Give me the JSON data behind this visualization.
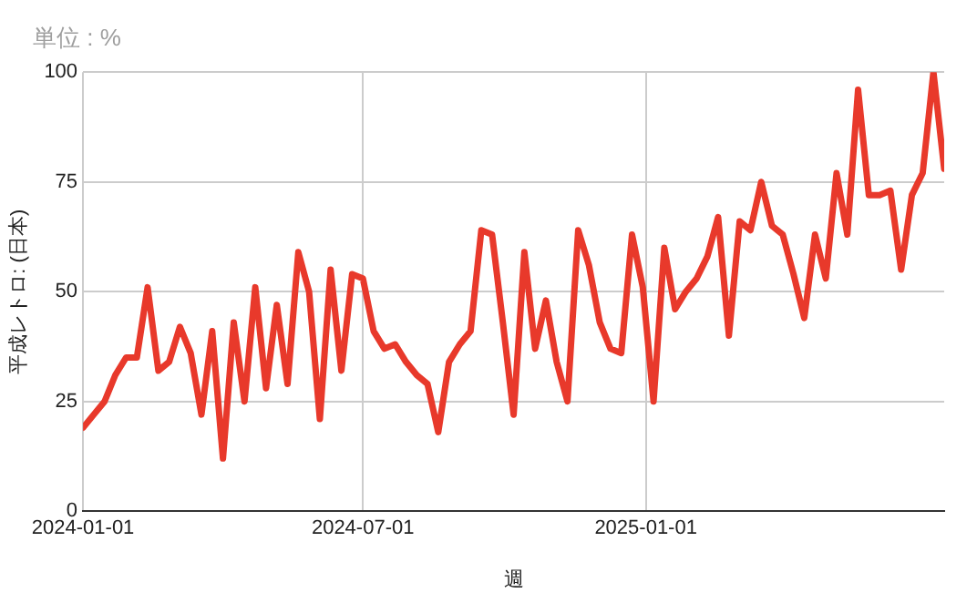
{
  "chart_data": {
    "type": "line",
    "title": "単位 : %",
    "xlabel": "週",
    "ylabel": "平成レトロ: (日本)",
    "x": [
      "2024-01-01",
      "2024-01-08",
      "2024-01-15",
      "2024-01-22",
      "2024-01-29",
      "2024-02-05",
      "2024-02-12",
      "2024-02-19",
      "2024-02-26",
      "2024-03-04",
      "2024-03-11",
      "2024-03-18",
      "2024-03-25",
      "2024-04-01",
      "2024-04-08",
      "2024-04-15",
      "2024-04-22",
      "2024-04-29",
      "2024-05-06",
      "2024-05-13",
      "2024-05-20",
      "2024-05-27",
      "2024-06-03",
      "2024-06-10",
      "2024-06-17",
      "2024-06-24",
      "2024-07-01",
      "2024-07-08",
      "2024-07-15",
      "2024-07-22",
      "2024-07-29",
      "2024-08-05",
      "2024-08-12",
      "2024-08-19",
      "2024-08-26",
      "2024-09-02",
      "2024-09-09",
      "2024-09-16",
      "2024-09-23",
      "2024-09-30",
      "2024-10-07",
      "2024-10-14",
      "2024-10-21",
      "2024-10-28",
      "2024-11-04",
      "2024-11-11",
      "2024-11-18",
      "2024-11-25",
      "2024-12-02",
      "2024-12-09",
      "2024-12-16",
      "2024-12-23",
      "2024-12-30",
      "2025-01-06",
      "2025-01-13",
      "2025-01-20",
      "2025-01-27",
      "2025-02-03",
      "2025-02-10",
      "2025-02-17",
      "2025-02-24",
      "2025-03-03",
      "2025-03-10",
      "2025-03-17",
      "2025-03-24",
      "2025-03-31",
      "2025-04-07",
      "2025-04-14",
      "2025-04-21",
      "2025-04-28",
      "2025-05-05",
      "2025-05-12",
      "2025-05-19",
      "2025-05-26",
      "2025-06-02",
      "2025-06-09",
      "2025-06-16",
      "2025-06-23",
      "2025-06-30",
      "2025-07-07",
      "2025-07-14"
    ],
    "series": [
      {
        "color": "#e8392b",
        "values": [
          19,
          22,
          25,
          31,
          35,
          35,
          51,
          32,
          34,
          42,
          36,
          22,
          41,
          12,
          43,
          25,
          51,
          28,
          47,
          29,
          59,
          50,
          21,
          55,
          32,
          54,
          53,
          41,
          37,
          38,
          34,
          31,
          29,
          18,
          34,
          38,
          41,
          64,
          63,
          43,
          22,
          59,
          37,
          48,
          34,
          25,
          64,
          56,
          43,
          37,
          36,
          63,
          51,
          25,
          60,
          46,
          50,
          53,
          58,
          67,
          40,
          66,
          64,
          75,
          65,
          63,
          54,
          44,
          63,
          53,
          77,
          63,
          96,
          72,
          72,
          73,
          55,
          72,
          77,
          100,
          78
        ]
      }
    ],
    "xlim": [
      "2024-01-01",
      "2025-07-14"
    ],
    "xticks": [
      "2024-01-01",
      "2024-07-01",
      "2025-01-01"
    ],
    "ylim": [
      0,
      100
    ],
    "yticks": [
      0,
      25,
      50,
      75,
      100
    ],
    "grid": true,
    "marker": "none",
    "line_style": "solid"
  }
}
